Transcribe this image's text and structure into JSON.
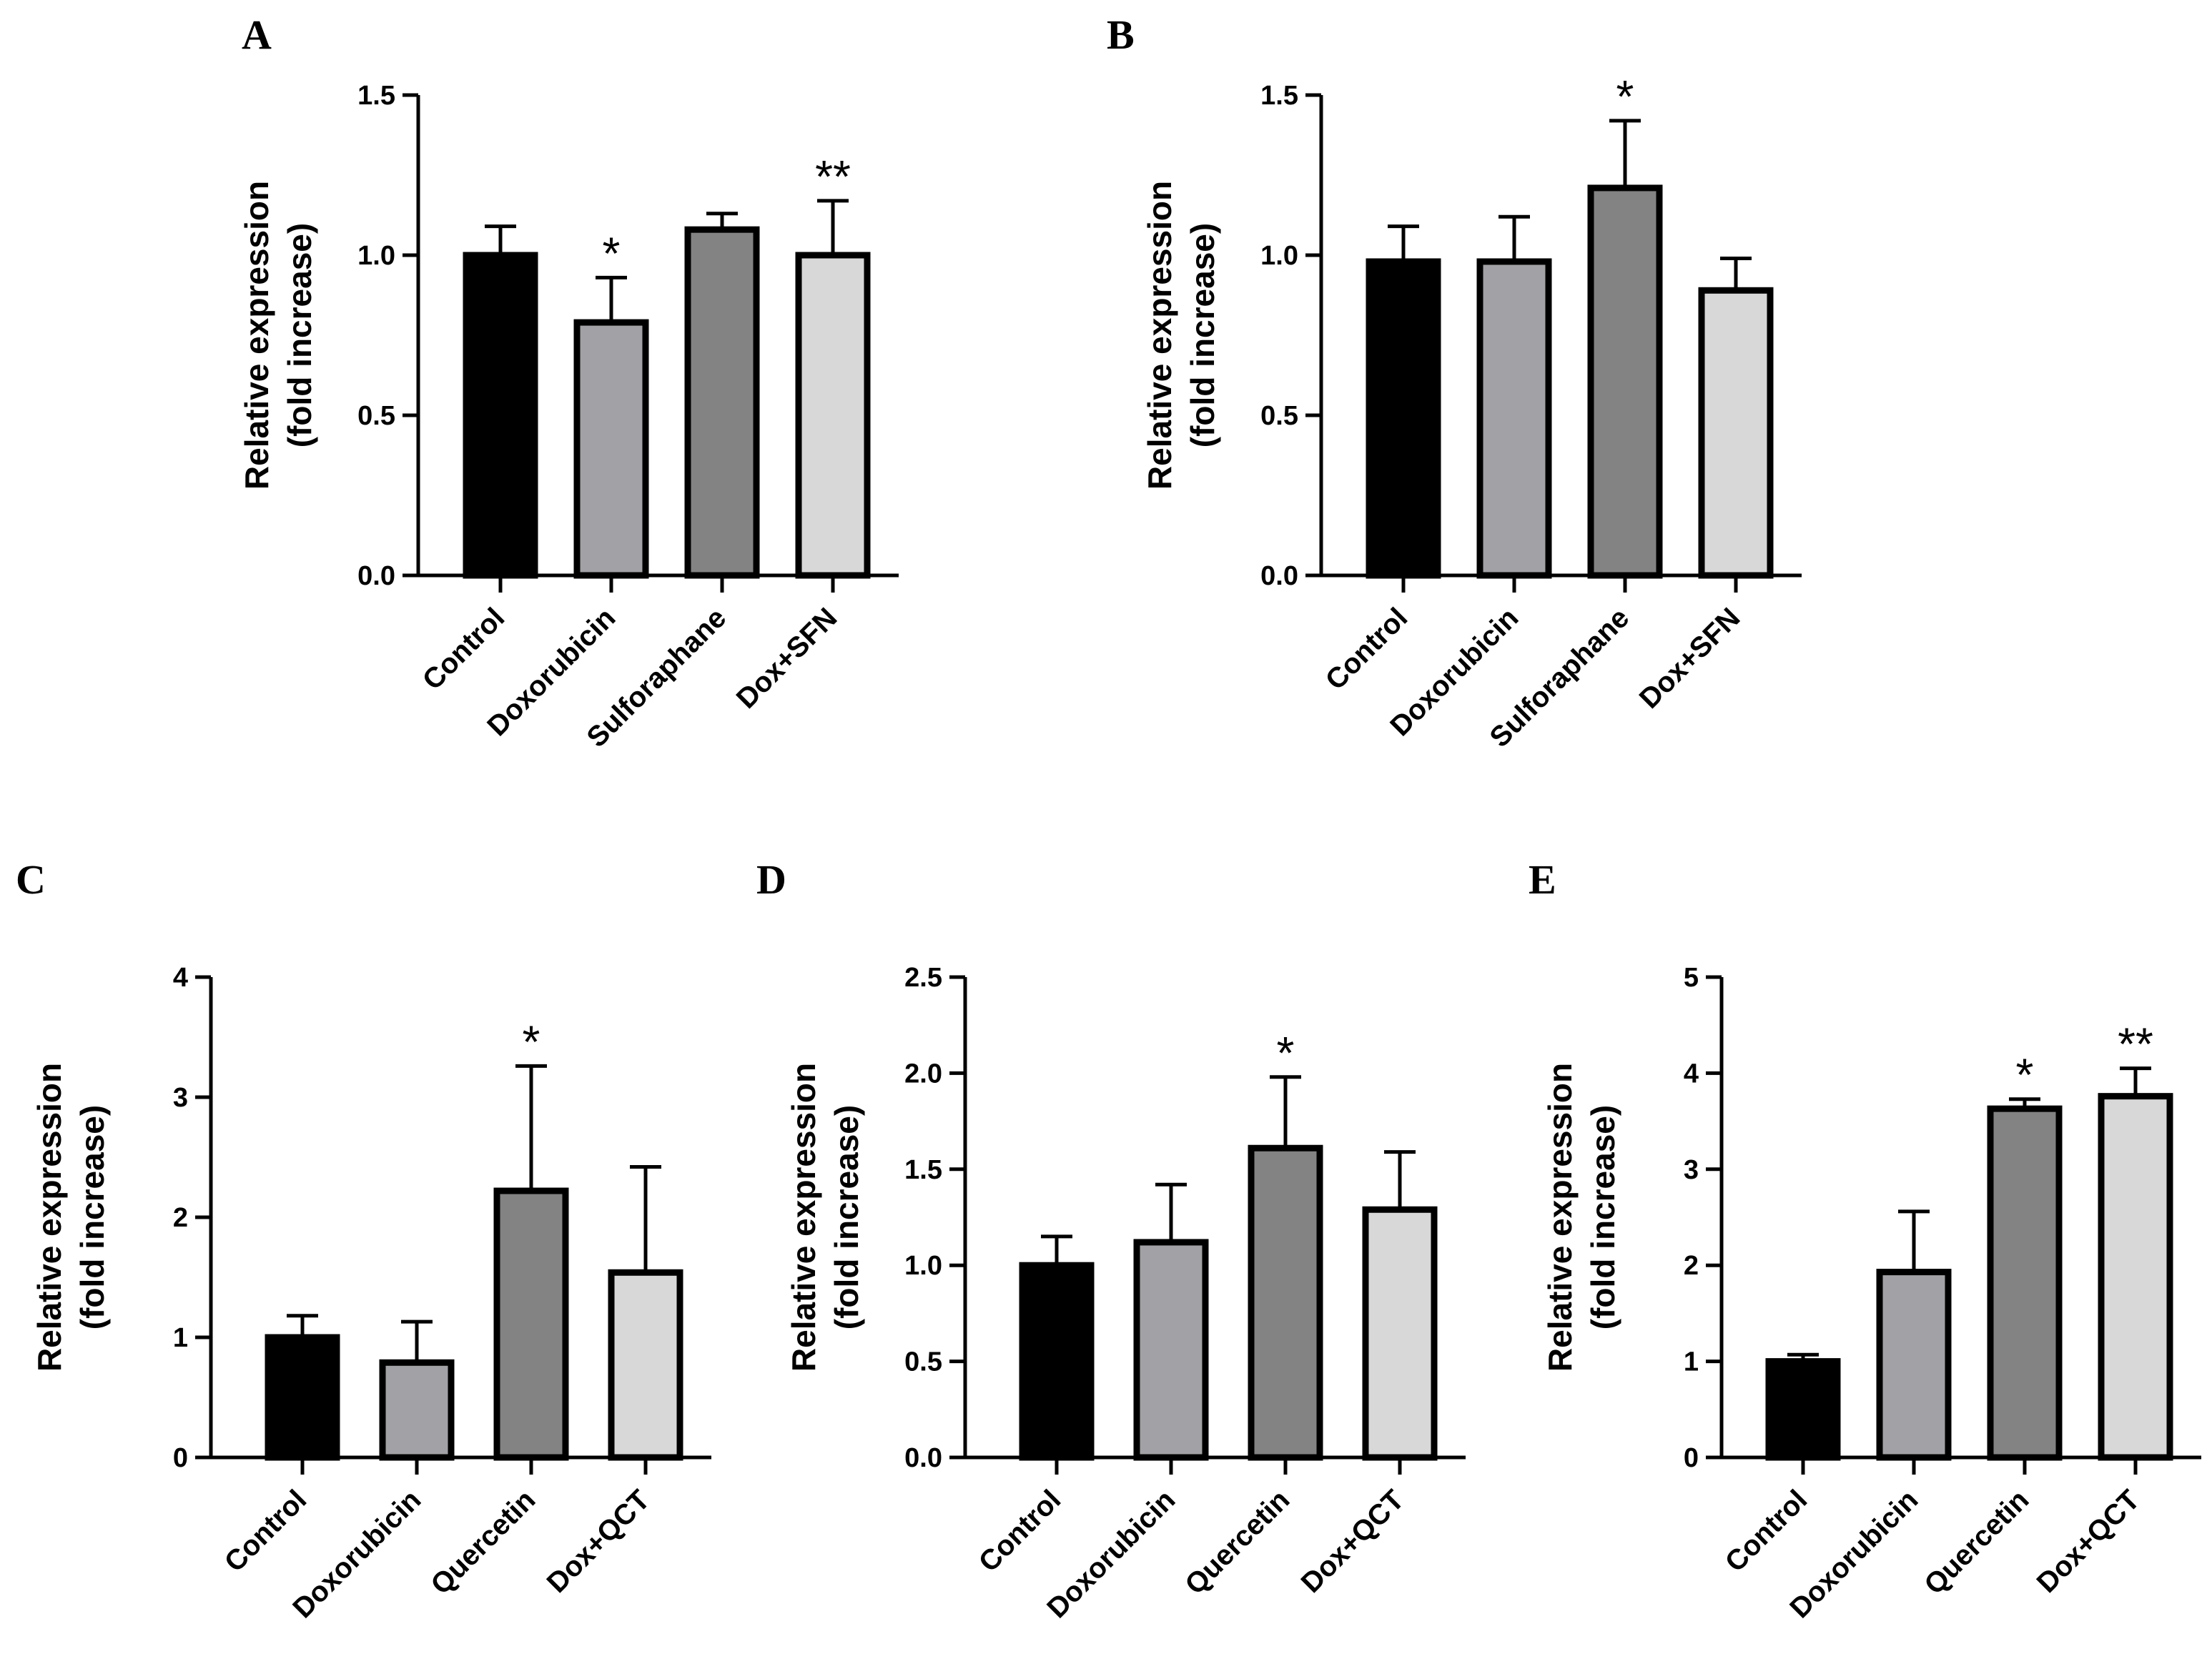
{
  "figure": {
    "colors": {
      "control": "#000000",
      "group2": "#a2a2a6",
      "group3": "#838383",
      "group4": "#d8d8d8",
      "stroke": "#000000"
    },
    "y_title_line1": "Relative expression",
    "y_title_line2": "(fold increase)"
  },
  "chart_data": [
    {
      "id": "A",
      "panel_label": "A",
      "type": "bar",
      "categories": [
        "Control",
        "Doxorubicin",
        "Sulforaphane",
        "Dox+SFN"
      ],
      "values": [
        1.0,
        0.79,
        1.08,
        1.0
      ],
      "errors": [
        0.09,
        0.14,
        0.05,
        0.17
      ],
      "significance": [
        "",
        "*",
        "",
        "**"
      ],
      "ylim": [
        0,
        1.5
      ],
      "yticks": [
        "0.0",
        "0.5",
        "1.0",
        "1.5"
      ],
      "ylabel": "Relative expression (fold increase)",
      "xlabel": ""
    },
    {
      "id": "B",
      "panel_label": "B",
      "type": "bar",
      "categories": [
        "Control",
        "Doxorubicin",
        "Sulforaphane",
        "Dox+SFN"
      ],
      "values": [
        0.98,
        0.98,
        1.21,
        0.89
      ],
      "errors": [
        0.11,
        0.14,
        0.21,
        0.1
      ],
      "significance": [
        "",
        "",
        "*",
        ""
      ],
      "ylim": [
        0,
        1.5
      ],
      "yticks": [
        "0.0",
        "0.5",
        "1.0",
        "1.5"
      ],
      "ylabel": "Relative expression (fold increase)",
      "xlabel": ""
    },
    {
      "id": "C",
      "panel_label": "C",
      "type": "bar",
      "categories": [
        "Control",
        "Doxorubicin",
        "Quercetin",
        "Dox+QCT"
      ],
      "values": [
        1.0,
        0.79,
        2.22,
        1.54
      ],
      "errors": [
        0.18,
        0.34,
        1.04,
        0.88
      ],
      "significance": [
        "",
        "",
        "*",
        ""
      ],
      "ylim": [
        0,
        4
      ],
      "yticks": [
        "0",
        "1",
        "2",
        "3",
        "4"
      ],
      "ylabel": "Relative expression (fold increase)",
      "xlabel": ""
    },
    {
      "id": "D",
      "panel_label": "D",
      "type": "bar",
      "categories": [
        "Control",
        "Doxorubicin",
        "Quercetin",
        "Dox+QCT"
      ],
      "values": [
        1.0,
        1.12,
        1.61,
        1.29
      ],
      "errors": [
        0.15,
        0.3,
        0.37,
        0.3
      ],
      "significance": [
        "",
        "",
        "*",
        ""
      ],
      "ylim": [
        0,
        2.5
      ],
      "yticks": [
        "0.0",
        "0.5",
        "1.0",
        "1.5",
        "2.0",
        "2.5"
      ],
      "ylabel": "Relative expression (fold increase)",
      "xlabel": ""
    },
    {
      "id": "E",
      "panel_label": "E",
      "type": "bar",
      "categories": [
        "Control",
        "Doxorubicin",
        "Quercetin",
        "Dox+QCT"
      ],
      "values": [
        1.0,
        1.93,
        3.63,
        3.76
      ],
      "errors": [
        0.07,
        0.63,
        0.1,
        0.29
      ],
      "significance": [
        "",
        "",
        "*",
        "**"
      ],
      "ylim": [
        0,
        5
      ],
      "yticks": [
        "0",
        "1",
        "2",
        "3",
        "4",
        "5"
      ],
      "ylabel": "Relative expression (fold increase)",
      "xlabel": ""
    }
  ]
}
